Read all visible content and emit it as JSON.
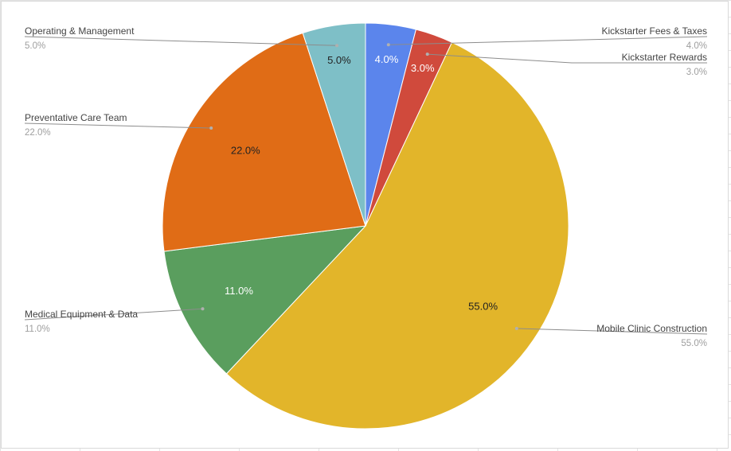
{
  "chart_data": {
    "type": "pie",
    "title": "",
    "legend": "callout labels beside each slice",
    "slices": [
      {
        "label": "Kickstarter Fees & Taxes",
        "value": 4.0,
        "display": "4.0%",
        "color": "#5b85ec",
        "label_color": "#ffffff",
        "callout_side": "right"
      },
      {
        "label": "Kickstarter Rewards",
        "value": 3.0,
        "display": "3.0%",
        "color": "#d04a3c",
        "label_color": "#ffffff",
        "callout_side": "right"
      },
      {
        "label": "Mobile Clinic Construction",
        "value": 55.0,
        "display": "55.0%",
        "color": "#e2b52a",
        "label_color": "#222222",
        "callout_side": "right"
      },
      {
        "label": "Medical Equipment & Data",
        "value": 11.0,
        "display": "11.0%",
        "color": "#5a9e5e",
        "label_color": "#ffffff",
        "callout_side": "left"
      },
      {
        "label": "Preventative Care Team",
        "value": 22.0,
        "display": "22.0%",
        "color": "#e06c16",
        "label_color": "#222222",
        "callout_side": "left"
      },
      {
        "label": "Operating & Management",
        "value": 5.0,
        "display": "5.0%",
        "color": "#7ebfc7",
        "label_color": "#222222",
        "callout_side": "left"
      }
    ]
  }
}
